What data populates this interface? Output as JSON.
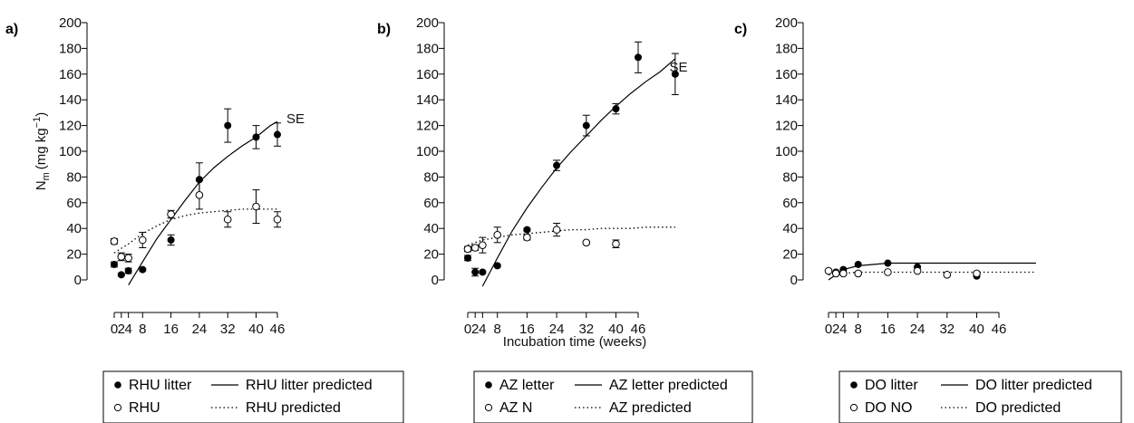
{
  "chart_data": [
    {
      "type": "scatter",
      "panel_label": "a)",
      "ylabel": "N",
      "ylabel_sub": "m",
      "ylabel_unit": "(mg kg",
      "ylabel_sup": "−1",
      "ylabel_close": ")",
      "xlabel": "",
      "ylim": [
        -10,
        200
      ],
      "yticks": [
        0,
        20,
        40,
        60,
        80,
        100,
        120,
        140,
        160,
        180,
        200
      ],
      "x_ticks": [
        {
          "label": "0",
          "week": 0
        },
        {
          "label": "2",
          "week": 2
        },
        {
          "label": "4",
          "week": 4
        },
        {
          "label": "8",
          "week": 8
        },
        {
          "label": "16",
          "week": 16
        },
        {
          "label": "24",
          "week": 24
        },
        {
          "label": "32",
          "week": 32
        },
        {
          "label": "40",
          "week": 40
        },
        {
          "label": "46",
          "week": 46
        }
      ],
      "annotation": {
        "text": "SE",
        "x": 46,
        "y": 124
      },
      "series": [
        {
          "name": "RHU litter",
          "marker": "filled",
          "x": [
            0,
            2,
            4,
            8,
            16,
            24,
            32,
            40,
            46
          ],
          "y": [
            12,
            4,
            7,
            8,
            31,
            78,
            120,
            111,
            113
          ],
          "err": [
            2,
            1,
            2,
            1,
            4,
            13,
            13,
            9,
            9
          ]
        },
        {
          "name": "RHU",
          "marker": "open",
          "x": [
            0,
            2,
            4,
            8,
            16,
            24,
            32,
            40,
            46
          ],
          "y": [
            30,
            18,
            17,
            31,
            51,
            66,
            47,
            57,
            47
          ],
          "err": [
            2,
            3,
            3,
            6,
            3,
            11,
            6,
            13,
            6
          ]
        }
      ],
      "curves": [
        {
          "name": "RHU litter predicted",
          "style": "solid",
          "x": [
            4,
            8,
            12,
            16,
            20,
            24,
            28,
            32,
            36,
            40,
            44,
            46
          ],
          "y": [
            -4,
            14,
            32,
            47,
            62,
            76,
            87,
            96,
            104,
            111,
            120,
            123
          ]
        },
        {
          "name": "RHU predicted",
          "style": "dotted",
          "x": [
            0,
            4,
            8,
            12,
            16,
            20,
            24,
            28,
            32,
            36,
            40,
            44,
            46
          ],
          "y": [
            21,
            28,
            36,
            42,
            47,
            50,
            52,
            53,
            54,
            55,
            55,
            55,
            55
          ]
        }
      ],
      "legend": {
        "entries": [
          {
            "symbol": "filled",
            "label": "RHU litter"
          },
          {
            "symbol": "solid",
            "label": "RHU litter predicted"
          },
          {
            "symbol": "open",
            "label": "RHU"
          },
          {
            "symbol": "dotted",
            "label": "RHU predicted"
          }
        ]
      }
    },
    {
      "type": "scatter",
      "panel_label": "b)",
      "xlabel": "Incubation time (weeks)",
      "ylim": [
        -10,
        200
      ],
      "yticks": [
        0,
        20,
        40,
        60,
        80,
        100,
        120,
        140,
        160,
        180,
        200
      ],
      "x_ticks": [
        {
          "label": "0",
          "week": 0
        },
        {
          "label": "2",
          "week": 2
        },
        {
          "label": "4",
          "week": 4
        },
        {
          "label": "8",
          "week": 8
        },
        {
          "label": "16",
          "week": 16
        },
        {
          "label": "24",
          "week": 24
        },
        {
          "label": "32",
          "week": 32
        },
        {
          "label": "40",
          "week": 40
        },
        {
          "label": "46",
          "week": 46
        }
      ],
      "annotation": {
        "text": "SE",
        "x": 52,
        "y": 164
      },
      "series": [
        {
          "name": "AZ letter",
          "marker": "filled",
          "x": [
            0,
            2,
            4,
            8,
            16,
            24,
            32,
            40,
            46,
            56
          ],
          "y": [
            17,
            6,
            6,
            11,
            39,
            89,
            120,
            133,
            173,
            160
          ],
          "err": [
            2,
            3,
            1,
            1,
            1,
            4,
            8,
            4,
            12,
            16
          ]
        },
        {
          "name": "AZ N",
          "marker": "open",
          "x": [
            0,
            2,
            4,
            8,
            16,
            24,
            32,
            40
          ],
          "y": [
            24,
            25,
            27,
            35,
            33,
            39,
            29,
            28
          ],
          "err": [
            2,
            2,
            6,
            6,
            2,
            5,
            1,
            3
          ]
        }
      ],
      "curves": [
        {
          "name": "AZ letter predicted",
          "style": "solid",
          "x": [
            4,
            8,
            12,
            16,
            20,
            24,
            28,
            32,
            36,
            40,
            44,
            48,
            52,
            56
          ],
          "y": [
            -5,
            17,
            38,
            56,
            72,
            87,
            100,
            112,
            124,
            135,
            145,
            154,
            162,
            172
          ]
        },
        {
          "name": "AZ predicted",
          "style": "dotted",
          "x": [
            0,
            4,
            8,
            12,
            16,
            20,
            24,
            28,
            32,
            36,
            40,
            44,
            48,
            52,
            56
          ],
          "y": [
            27,
            31,
            33,
            35,
            36,
            37,
            38,
            39,
            39,
            40,
            40,
            40,
            41,
            41,
            41
          ]
        }
      ],
      "legend": {
        "entries": [
          {
            "symbol": "filled",
            "label": "AZ letter"
          },
          {
            "symbol": "solid",
            "label": "AZ letter predicted"
          },
          {
            "symbol": "open",
            "label": "AZ N"
          },
          {
            "symbol": "dotted",
            "label": "AZ predicted"
          }
        ]
      }
    },
    {
      "type": "scatter",
      "panel_label": "c)",
      "xlabel": "",
      "ylim": [
        -10,
        200
      ],
      "yticks": [
        0,
        20,
        40,
        60,
        80,
        100,
        120,
        140,
        160,
        180,
        200
      ],
      "x_ticks": [
        {
          "label": "0",
          "week": 0
        },
        {
          "label": "2",
          "week": 2
        },
        {
          "label": "4",
          "week": 4
        },
        {
          "label": "8",
          "week": 8
        },
        {
          "label": "16",
          "week": 16
        },
        {
          "label": "24",
          "week": 24
        },
        {
          "label": "32",
          "week": 32
        },
        {
          "label": "40",
          "week": 40
        },
        {
          "label": "46",
          "week": 46
        }
      ],
      "series": [
        {
          "name": "DO litter",
          "marker": "filled",
          "x": [
            0,
            2,
            4,
            8,
            16,
            24,
            40
          ],
          "y": [
            7,
            6,
            8,
            12,
            13,
            10,
            3
          ],
          "err": [
            0,
            0,
            0,
            0,
            0,
            0,
            0
          ]
        },
        {
          "name": "DO NO",
          "marker": "open",
          "x": [
            0,
            2,
            4,
            8,
            16,
            24,
            32,
            40
          ],
          "y": [
            7,
            5,
            5,
            5,
            6,
            7,
            4,
            5
          ],
          "err": [
            0,
            0,
            0,
            0,
            0,
            0,
            0,
            0
          ]
        }
      ],
      "curves": [
        {
          "name": "DO litter predicted",
          "style": "solid",
          "x": [
            0,
            4,
            8,
            12,
            16,
            20,
            24,
            32,
            40,
            48,
            56
          ],
          "y": [
            0,
            8,
            11,
            12,
            13,
            13,
            13,
            13,
            13,
            13,
            13
          ]
        },
        {
          "name": "DO predicted",
          "style": "dotted",
          "x": [
            0,
            4,
            8,
            16,
            24,
            32,
            40,
            48,
            56
          ],
          "y": [
            4,
            5,
            6,
            6,
            6,
            6,
            6,
            6,
            6
          ]
        }
      ],
      "legend": {
        "entries": [
          {
            "symbol": "filled",
            "label": "DO litter"
          },
          {
            "symbol": "solid",
            "label": "DO litter predicted"
          },
          {
            "symbol": "open",
            "label": "DO NO"
          },
          {
            "symbol": "dotted",
            "label": "DO predicted"
          }
        ]
      }
    }
  ]
}
